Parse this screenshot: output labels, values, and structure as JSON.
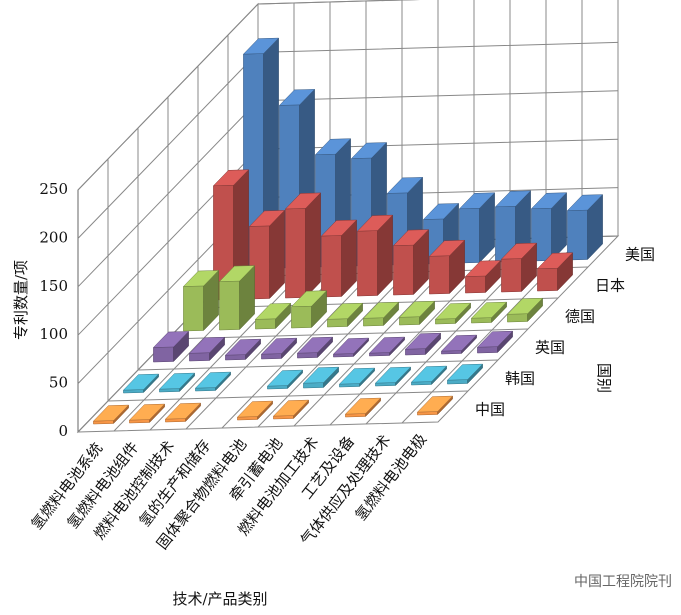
{
  "chart_data": {
    "type": "bar3d",
    "y_label": "专利数量/项",
    "x_label": "技术/产品类别",
    "z_label": "国别",
    "categories": [
      "氢燃料电池系统",
      "氢燃料电池组件",
      "燃料电池控制技术",
      "氢的生产和储存",
      "固体聚合物燃料电池",
      "牵引蓄电池",
      "燃料电池加工技术",
      "工艺及设备",
      "气体供应及处理技术",
      "氢燃料电池电极"
    ],
    "series": [
      {
        "name": "中国",
        "color": "#f79646",
        "values": [
          3,
          3,
          3,
          null,
          3,
          3,
          null,
          3,
          null,
          3
        ]
      },
      {
        "name": "韩国",
        "color": "#4bacc6",
        "values": [
          3,
          3,
          3,
          null,
          3,
          5,
          3,
          3,
          3,
          4
        ]
      },
      {
        "name": "英国",
        "color": "#8064a2",
        "values": [
          15,
          8,
          5,
          5,
          5,
          3,
          3,
          6,
          3,
          6
        ]
      },
      {
        "name": "德国",
        "color": "#9bbb59",
        "values": [
          46,
          50,
          10,
          22,
          8,
          8,
          8,
          5,
          5,
          8
        ]
      },
      {
        "name": "日本",
        "color": "#c0504d",
        "values": [
          118,
          75,
          92,
          63,
          67,
          51,
          39,
          17,
          34,
          23
        ]
      },
      {
        "name": "美国",
        "color": "#4f81bd",
        "values": [
          222,
          168,
          116,
          111,
          74,
          46,
          56,
          57,
          54,
          51
        ]
      }
    ],
    "ylim": [
      0,
      250
    ],
    "yticks": [
      0,
      50,
      100,
      150,
      200,
      250
    ],
    "grid": true,
    "watermark": "中国工程院院刊"
  }
}
